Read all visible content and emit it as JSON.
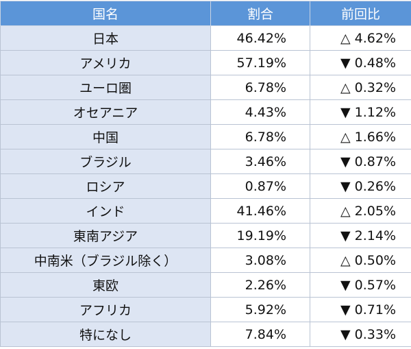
{
  "table": {
    "header": [
      "国名",
      "割合",
      "前回比"
    ],
    "rows": [
      [
        "日本",
        "46.42%",
        "△ 4.62%"
      ],
      [
        "アメリカ",
        "57.19%",
        "▼ 0.48%"
      ],
      [
        "ユーロ圏",
        "6.78%",
        "△ 0.32%"
      ],
      [
        "オセアニア",
        "4.43%",
        "▼ 1.12%"
      ],
      [
        "中国",
        "6.78%",
        "△ 1.66%"
      ],
      [
        "ブラジル",
        "3.46%",
        "▼ 0.87%"
      ],
      [
        "ロシア",
        "0.87%",
        "▼ 0.26%"
      ],
      [
        "インド",
        "41.46%",
        "△ 2.05%"
      ],
      [
        "東南アジア",
        "19.19%",
        "▼ 2.14%"
      ],
      [
        "中南米（ブラジル除く）",
        "3.08%",
        "△ 0.50%"
      ],
      [
        "東欧",
        "2.26%",
        "▼ 0.57%"
      ],
      [
        "アフリカ",
        "5.92%",
        "▼ 0.71%"
      ],
      [
        "特になし",
        "7.84%",
        "▼ 0.33%"
      ]
    ]
  }
}
